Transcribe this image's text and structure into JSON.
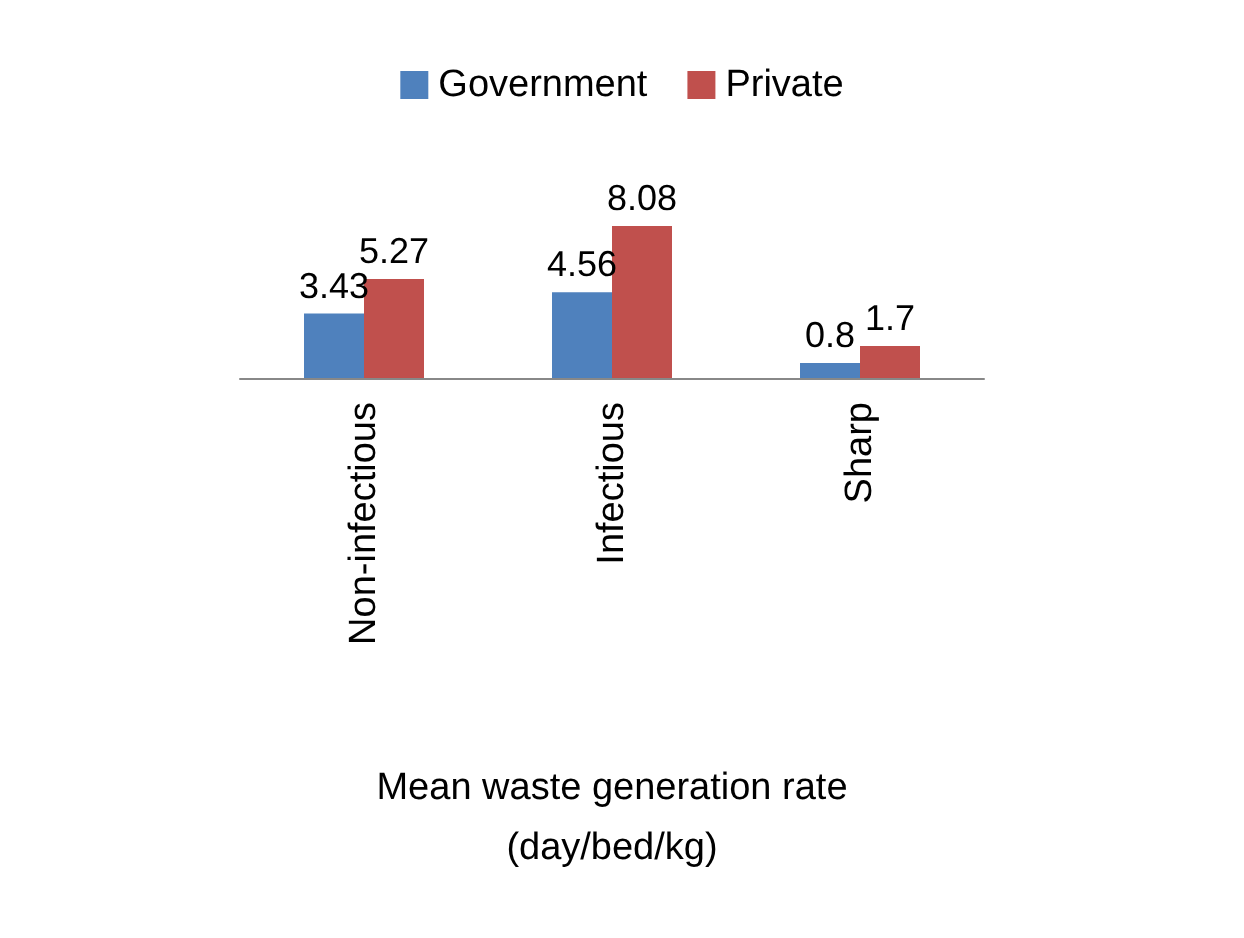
{
  "chart_data": {
    "type": "bar",
    "categories": [
      "Non-infectious",
      "Infectious",
      "Sharp"
    ],
    "series": [
      {
        "name": "Government",
        "color": "#4f81bd",
        "values": [
          3.43,
          4.56,
          0.8
        ]
      },
      {
        "name": "Private",
        "color": "#c0504d",
        "values": [
          5.27,
          8.08,
          1.7
        ]
      }
    ],
    "xlabel": "Mean waste generation rate\n(day/bed/kg)",
    "data_labels": true,
    "legend": "top"
  }
}
